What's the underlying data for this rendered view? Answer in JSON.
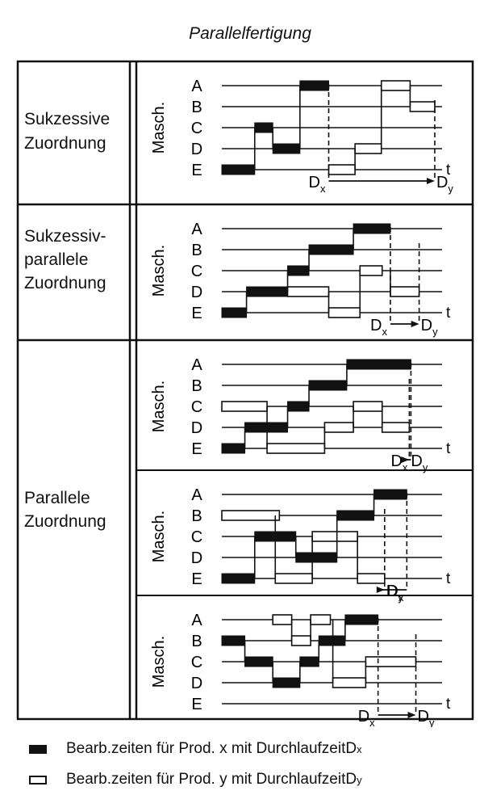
{
  "title": "Parallelfertigung",
  "axis_label": "Masch.",
  "machines": [
    "A",
    "B",
    "C",
    "D",
    "E"
  ],
  "time_label": "t",
  "categories": [
    {
      "lines": [
        "Sukzessive",
        "Zuordnung"
      ]
    },
    {
      "lines": [
        "Sukzessiv-",
        "parallele",
        "Zuordnung"
      ]
    },
    {
      "lines": [
        "Parallele",
        "Zuordnung"
      ]
    }
  ],
  "panels": [
    {
      "category": 0,
      "x": [
        {
          "m": "E",
          "t0": 0,
          "t1": 40
        },
        {
          "m": "C",
          "t0": 40,
          "t1": 62
        },
        {
          "m": "D",
          "t0": 62,
          "t1": 95
        },
        {
          "m": "A",
          "t0": 95,
          "t1": 130
        }
      ],
      "y": [
        {
          "m": "E",
          "t0": 130,
          "t1": 162
        },
        {
          "m": "D",
          "t0": 162,
          "t1": 194
        },
        {
          "m": "A",
          "t0": 194,
          "t1": 229
        },
        {
          "m": "B",
          "t0": 229,
          "t1": 259
        }
      ],
      "duration_labels": [
        {
          "sym": "D",
          "sub": "x"
        },
        {
          "sym": "D",
          "sub": "y"
        }
      ]
    },
    {
      "category": 1,
      "x": [
        {
          "m": "E",
          "t0": 0,
          "t1": 30
        },
        {
          "m": "D",
          "t0": 30,
          "t1": 80
        },
        {
          "m": "C",
          "t0": 80,
          "t1": 106
        },
        {
          "m": "B",
          "t0": 106,
          "t1": 160
        },
        {
          "m": "A",
          "t0": 160,
          "t1": 205
        }
      ],
      "y": [
        {
          "m": "D",
          "t0": 80,
          "t1": 130
        },
        {
          "m": "E",
          "t0": 130,
          "t1": 168
        },
        {
          "m": "C",
          "t0": 168,
          "t1": 195
        },
        {
          "m": "D",
          "t0": 205,
          "t1": 240
        }
      ],
      "duration_labels": [
        {
          "sym": "D",
          "sub": "x"
        },
        {
          "sym": "D",
          "sub": "y"
        }
      ]
    },
    {
      "category": 2,
      "x": [
        {
          "m": "E",
          "t0": 0,
          "t1": 28
        },
        {
          "m": "D",
          "t0": 28,
          "t1": 80
        },
        {
          "m": "C",
          "t0": 80,
          "t1": 106
        },
        {
          "m": "B",
          "t0": 106,
          "t1": 152
        },
        {
          "m": "A",
          "t0": 152,
          "t1": 230
        }
      ],
      "y": [
        {
          "m": "C",
          "t0": 0,
          "t1": 55
        },
        {
          "m": "E",
          "t0": 55,
          "t1": 125
        },
        {
          "m": "D",
          "t0": 125,
          "t1": 160
        },
        {
          "m": "C",
          "t0": 160,
          "t1": 195
        },
        {
          "m": "D",
          "t0": 195,
          "t1": 228
        }
      ],
      "duration_labels": [
        {
          "sym": "D",
          "sub": "x"
        },
        {
          "sym": "D",
          "sub": "y"
        }
      ]
    },
    {
      "category": 2,
      "x": [
        {
          "m": "E",
          "t0": 0,
          "t1": 40
        },
        {
          "m": "C",
          "t0": 40,
          "t1": 90
        },
        {
          "m": "D",
          "t0": 90,
          "t1": 140
        },
        {
          "m": "B",
          "t0": 140,
          "t1": 185
        },
        {
          "m": "A",
          "t0": 185,
          "t1": 225
        }
      ],
      "y": [
        {
          "m": "B",
          "t0": 0,
          "t1": 70
        },
        {
          "m": "E",
          "t0": 65,
          "t1": 110
        },
        {
          "m": "C",
          "t0": 110,
          "t1": 165
        },
        {
          "m": "E",
          "t0": 165,
          "t1": 198
        }
      ],
      "duration_labels": [
        {
          "sym": "D",
          "sub": "x"
        },
        {
          "sym": "D",
          "sub": "y"
        }
      ]
    },
    {
      "category": 2,
      "x": [
        {
          "m": "B",
          "t0": 0,
          "t1": 28
        },
        {
          "m": "C",
          "t0": 28,
          "t1": 62
        },
        {
          "m": "D",
          "t0": 62,
          "t1": 95
        },
        {
          "m": "C",
          "t0": 95,
          "t1": 118
        },
        {
          "m": "B",
          "t0": 118,
          "t1": 150
        },
        {
          "m": "A",
          "t0": 150,
          "t1": 190
        }
      ],
      "y": [
        {
          "m": "A",
          "t0": 62,
          "t1": 85
        },
        {
          "m": "B",
          "t0": 85,
          "t1": 108
        },
        {
          "m": "A",
          "t0": 108,
          "t1": 132
        },
        {
          "m": "D",
          "t0": 135,
          "t1": 175
        },
        {
          "m": "C",
          "t0": 175,
          "t1": 236
        }
      ],
      "duration_labels": [
        {
          "sym": "D",
          "sub": "x"
        },
        {
          "sym": "D",
          "sub": "y"
        }
      ]
    }
  ],
  "legend": [
    {
      "swatch": "black",
      "text": "Bearb.zeiten für Prod. x mit Durchlaufzeit ",
      "sym": "D",
      "sub": "x"
    },
    {
      "swatch": "white",
      "text": "Bearb.zeiten für Prod. y mit Durchlaufzeit ",
      "sym": "D",
      "sub": "y"
    }
  ]
}
